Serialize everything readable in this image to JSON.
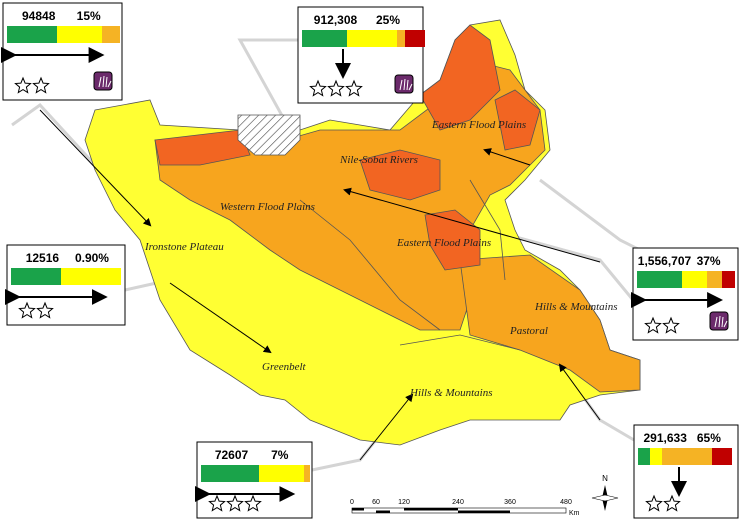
{
  "regions": [
    "Eastern Flood Plains",
    "Nile-Sobat Rivers",
    "Western Flood Plains",
    "Eastern Flood Plains",
    "Ironstone Plateau",
    "Hills & Mountains",
    "Pastoral",
    "Greenbelt",
    "Hills & Mountains"
  ],
  "callouts": [
    {
      "population": "94848",
      "share": "15%"
    },
    {
      "population": "912,308",
      "share": "25%"
    },
    {
      "population": "12516",
      "share": "0.90%"
    },
    {
      "population": "72607",
      "share": "7%"
    },
    {
      "population": "1,556,707",
      "share": "37%"
    },
    {
      "population": "291,633",
      "share": "65%"
    }
  ],
  "scale_bar": {
    "ticks": [
      "0",
      "60",
      "120",
      "240",
      "360",
      "480"
    ],
    "unit": "Km"
  },
  "north": "N"
}
